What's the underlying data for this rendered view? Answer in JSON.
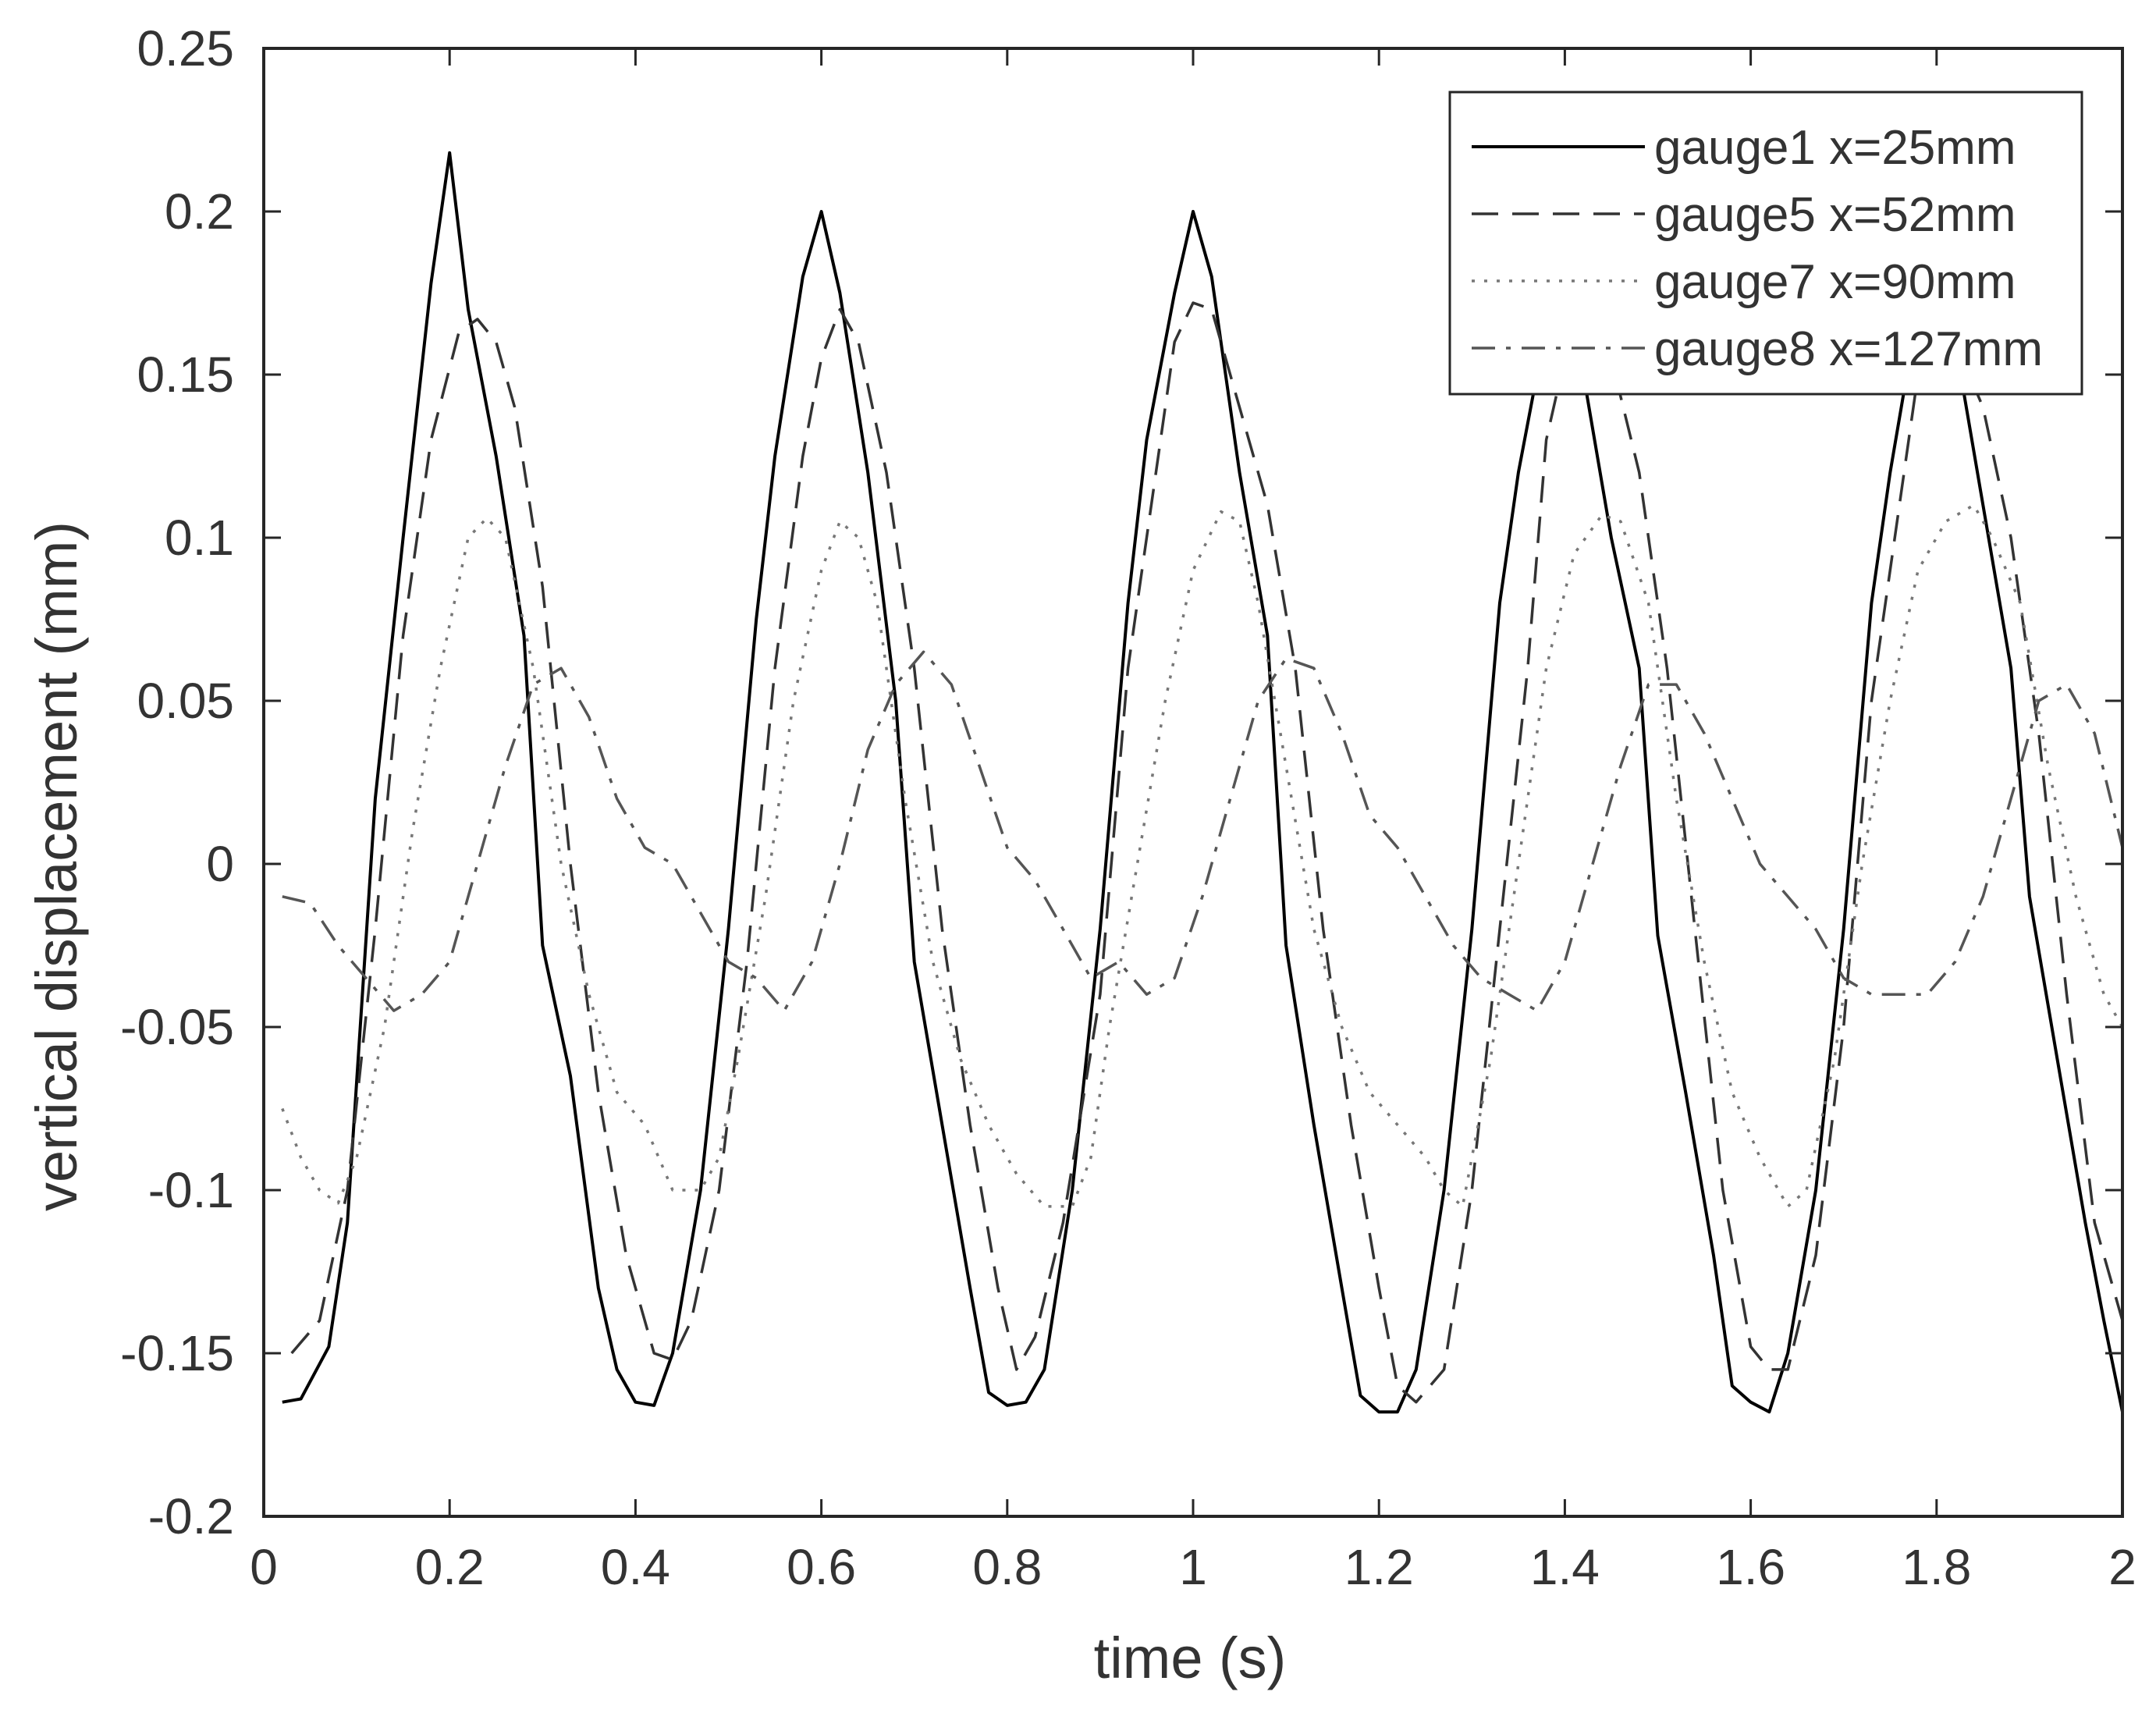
{
  "chart_data": {
    "type": "line",
    "xlabel": "time (s)",
    "ylabel": "vertical displacement (mm)",
    "xlim": [
      0,
      2
    ],
    "ylim": [
      -0.2,
      0.25
    ],
    "xticks": [
      0,
      0.2,
      0.4,
      0.6,
      0.8,
      1,
      1.2,
      1.4,
      1.6,
      1.8,
      2
    ],
    "xtick_labels": [
      "0",
      "0.2",
      "0.4",
      "0.6",
      "0.8",
      "1",
      "1.2",
      "1.4",
      "1.6",
      "1.8",
      "2"
    ],
    "yticks": [
      -0.2,
      -0.15,
      -0.1,
      -0.05,
      0,
      0.05,
      0.1,
      0.15,
      0.2,
      0.25
    ],
    "ytick_labels": [
      "-0.2",
      "-0.15",
      "-0.1",
      "-0.05",
      "0",
      "0.05",
      "0.1",
      "0.15",
      "0.2",
      "0.25"
    ],
    "grid": false,
    "legend_position": "top-right",
    "series": [
      {
        "name": "gauge1 x=25mm",
        "color": "#000000",
        "line_style": "solid",
        "x": [
          0.02,
          0.04,
          0.07,
          0.09,
          0.12,
          0.15,
          0.18,
          0.2,
          0.22,
          0.25,
          0.28,
          0.3,
          0.33,
          0.36,
          0.38,
          0.4,
          0.42,
          0.44,
          0.47,
          0.5,
          0.53,
          0.55,
          0.58,
          0.6,
          0.62,
          0.65,
          0.68,
          0.7,
          0.73,
          0.76,
          0.78,
          0.8,
          0.82,
          0.84,
          0.87,
          0.9,
          0.93,
          0.95,
          0.98,
          1.0,
          1.02,
          1.05,
          1.08,
          1.1,
          1.13,
          1.16,
          1.18,
          1.2,
          1.22,
          1.24,
          1.27,
          1.3,
          1.33,
          1.35,
          1.38,
          1.4,
          1.42,
          1.45,
          1.48,
          1.5,
          1.53,
          1.56,
          1.58,
          1.6,
          1.62,
          1.64,
          1.67,
          1.7,
          1.73,
          1.75,
          1.78,
          1.8,
          1.82,
          1.85,
          1.88,
          1.9,
          1.93,
          1.96,
          1.98,
          2.0
        ],
        "y": [
          -0.165,
          -0.164,
          -0.148,
          -0.11,
          0.02,
          0.1,
          0.178,
          0.218,
          0.17,
          0.125,
          0.07,
          -0.025,
          -0.065,
          -0.13,
          -0.155,
          -0.165,
          -0.166,
          -0.15,
          -0.1,
          -0.02,
          0.075,
          0.125,
          0.18,
          0.2,
          0.175,
          0.12,
          0.05,
          -0.03,
          -0.08,
          -0.13,
          -0.162,
          -0.166,
          -0.165,
          -0.155,
          -0.1,
          -0.02,
          0.08,
          0.13,
          0.175,
          0.2,
          0.18,
          0.12,
          0.07,
          -0.025,
          -0.08,
          -0.13,
          -0.163,
          -0.168,
          -0.168,
          -0.155,
          -0.1,
          -0.02,
          0.08,
          0.12,
          0.165,
          0.17,
          0.15,
          0.1,
          0.06,
          -0.022,
          -0.07,
          -0.12,
          -0.16,
          -0.165,
          -0.168,
          -0.15,
          -0.1,
          -0.02,
          0.08,
          0.12,
          0.17,
          0.175,
          0.16,
          0.11,
          0.06,
          -0.01,
          -0.06,
          -0.11,
          -0.14,
          -0.168
        ]
      },
      {
        "name": "gauge5 x=52mm",
        "color": "#333333",
        "line_style": "dashed",
        "x": [
          0.03,
          0.06,
          0.09,
          0.12,
          0.15,
          0.18,
          0.21,
          0.23,
          0.25,
          0.27,
          0.3,
          0.33,
          0.36,
          0.39,
          0.42,
          0.44,
          0.46,
          0.49,
          0.52,
          0.55,
          0.58,
          0.6,
          0.62,
          0.64,
          0.67,
          0.7,
          0.73,
          0.76,
          0.79,
          0.81,
          0.83,
          0.86,
          0.9,
          0.93,
          0.96,
          0.98,
          1.0,
          1.02,
          1.05,
          1.08,
          1.11,
          1.14,
          1.17,
          1.2,
          1.22,
          1.24,
          1.27,
          1.3,
          1.33,
          1.36,
          1.38,
          1.4,
          1.42,
          1.45,
          1.48,
          1.51,
          1.54,
          1.57,
          1.6,
          1.62,
          1.64,
          1.67,
          1.7,
          1.73,
          1.76,
          1.78,
          1.8,
          1.82,
          1.85,
          1.88,
          1.91,
          1.94,
          1.97,
          2.0
        ],
        "y": [
          -0.15,
          -0.14,
          -0.1,
          -0.02,
          0.07,
          0.13,
          0.163,
          0.167,
          0.16,
          0.14,
          0.085,
          0.0,
          -0.07,
          -0.12,
          -0.15,
          -0.152,
          -0.14,
          -0.1,
          -0.03,
          0.06,
          0.125,
          0.155,
          0.17,
          0.16,
          0.12,
          0.06,
          -0.02,
          -0.08,
          -0.13,
          -0.155,
          -0.145,
          -0.11,
          -0.04,
          0.06,
          0.12,
          0.16,
          0.172,
          0.17,
          0.14,
          0.11,
          0.06,
          -0.02,
          -0.08,
          -0.13,
          -0.16,
          -0.165,
          -0.155,
          -0.1,
          -0.02,
          0.06,
          0.13,
          0.155,
          0.165,
          0.155,
          0.12,
          0.06,
          -0.02,
          -0.1,
          -0.148,
          -0.155,
          -0.155,
          -0.12,
          -0.05,
          0.05,
          0.11,
          0.15,
          0.165,
          0.16,
          0.14,
          0.1,
          0.04,
          -0.04,
          -0.11,
          -0.14
        ]
      },
      {
        "name": "gauge7 x=90mm",
        "color": "#777777",
        "line_style": "dotted",
        "x": [
          0.02,
          0.04,
          0.06,
          0.08,
          0.1,
          0.13,
          0.16,
          0.19,
          0.22,
          0.24,
          0.26,
          0.29,
          0.32,
          0.35,
          0.38,
          0.41,
          0.44,
          0.47,
          0.49,
          0.51,
          0.54,
          0.57,
          0.6,
          0.62,
          0.64,
          0.66,
          0.69,
          0.72,
          0.75,
          0.78,
          0.81,
          0.84,
          0.87,
          0.89,
          0.91,
          0.94,
          0.97,
          1.0,
          1.03,
          1.05,
          1.07,
          1.1,
          1.13,
          1.16,
          1.19,
          1.22,
          1.25,
          1.27,
          1.29,
          1.32,
          1.35,
          1.38,
          1.41,
          1.44,
          1.46,
          1.49,
          1.52,
          1.55,
          1.58,
          1.61,
          1.64,
          1.66,
          1.69,
          1.72,
          1.75,
          1.78,
          1.81,
          1.84,
          1.86,
          1.89,
          1.92,
          1.95,
          1.98,
          2.0
        ],
        "y": [
          -0.075,
          -0.09,
          -0.1,
          -0.104,
          -0.09,
          -0.05,
          0.01,
          0.06,
          0.1,
          0.106,
          0.1,
          0.06,
          0.0,
          -0.04,
          -0.07,
          -0.08,
          -0.1,
          -0.1,
          -0.09,
          -0.06,
          -0.01,
          0.05,
          0.09,
          0.105,
          0.1,
          0.08,
          0.02,
          -0.03,
          -0.06,
          -0.08,
          -0.095,
          -0.105,
          -0.105,
          -0.09,
          -0.05,
          0.0,
          0.05,
          0.09,
          0.108,
          0.105,
          0.08,
          0.03,
          -0.02,
          -0.05,
          -0.07,
          -0.08,
          -0.09,
          -0.1,
          -0.105,
          -0.06,
          0.0,
          0.06,
          0.095,
          0.107,
          0.105,
          0.08,
          0.02,
          -0.03,
          -0.07,
          -0.09,
          -0.105,
          -0.1,
          -0.06,
          0.0,
          0.05,
          0.09,
          0.105,
          0.11,
          0.1,
          0.08,
          0.03,
          -0.01,
          -0.04,
          -0.05
        ]
      },
      {
        "name": "gauge8 x=127mm",
        "color": "#555555",
        "line_style": "dashdot",
        "x": [
          0.02,
          0.05,
          0.08,
          0.11,
          0.14,
          0.17,
          0.2,
          0.23,
          0.26,
          0.29,
          0.32,
          0.35,
          0.38,
          0.41,
          0.44,
          0.47,
          0.5,
          0.53,
          0.56,
          0.59,
          0.62,
          0.65,
          0.68,
          0.71,
          0.74,
          0.77,
          0.8,
          0.83,
          0.86,
          0.89,
          0.92,
          0.95,
          0.98,
          1.01,
          1.04,
          1.07,
          1.1,
          1.13,
          1.16,
          1.19,
          1.22,
          1.25,
          1.28,
          1.31,
          1.34,
          1.37,
          1.4,
          1.43,
          1.46,
          1.49,
          1.52,
          1.55,
          1.58,
          1.61,
          1.64,
          1.67,
          1.7,
          1.73,
          1.76,
          1.79,
          1.82,
          1.85,
          1.88,
          1.91,
          1.94,
          1.97,
          2.0
        ],
        "y": [
          -0.01,
          -0.012,
          -0.025,
          -0.035,
          -0.045,
          -0.04,
          -0.03,
          0.0,
          0.03,
          0.055,
          0.06,
          0.045,
          0.02,
          0.005,
          0.0,
          -0.015,
          -0.03,
          -0.035,
          -0.045,
          -0.03,
          0.0,
          0.035,
          0.055,
          0.065,
          0.055,
          0.03,
          0.005,
          -0.005,
          -0.02,
          -0.035,
          -0.03,
          -0.04,
          -0.035,
          -0.01,
          0.02,
          0.05,
          0.063,
          0.06,
          0.04,
          0.015,
          0.005,
          -0.01,
          -0.025,
          -0.035,
          -0.04,
          -0.045,
          -0.03,
          0.0,
          0.03,
          0.055,
          0.055,
          0.04,
          0.02,
          0.0,
          -0.01,
          -0.02,
          -0.035,
          -0.04,
          -0.04,
          -0.04,
          -0.03,
          -0.01,
          0.02,
          0.05,
          0.055,
          0.04,
          0.005
        ]
      }
    ]
  }
}
